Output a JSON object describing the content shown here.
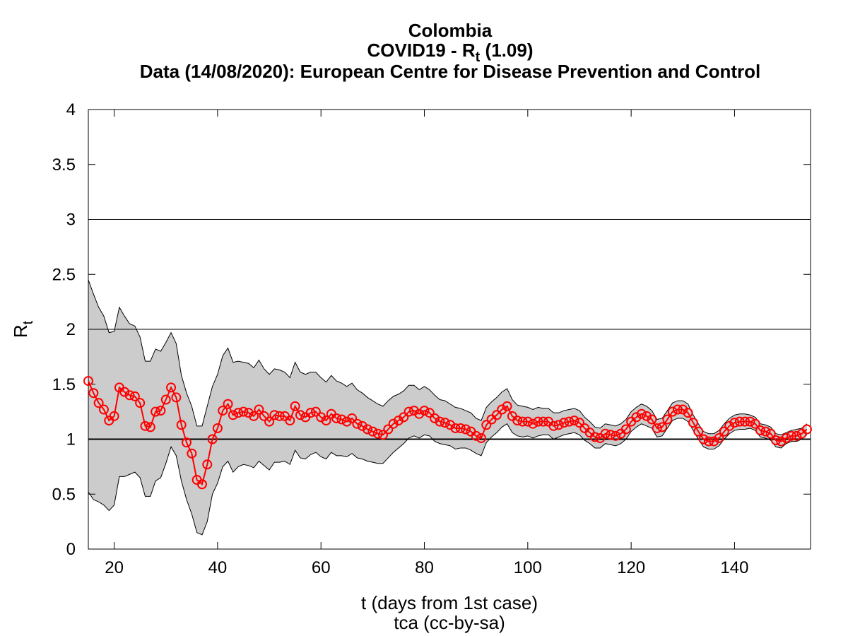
{
  "chart_data": {
    "type": "line",
    "title": "Colombia",
    "subtitle": {
      "main": "COVID19 - R",
      "sub": "t",
      "after": " (1.09)"
    },
    "source": "Data (14/08/2020): European Centre for Disease Prevention and Control",
    "xlabel": "t (days from 1st case)",
    "ylabel": {
      "main": "R",
      "sub": "t"
    },
    "footer": "tca (cc-by-sa)",
    "xlim": [
      15,
      154.7
    ],
    "ylim": [
      0,
      4
    ],
    "xticks": [
      20,
      40,
      60,
      80,
      100,
      120,
      140
    ],
    "yticks": [
      0,
      0.5,
      1,
      1.5,
      2,
      2.5,
      3,
      3.5,
      4
    ],
    "hlines": [
      1,
      2,
      3
    ],
    "x": [
      15,
      16,
      17,
      18,
      19,
      20,
      21,
      22,
      23,
      24,
      25,
      26,
      27,
      28,
      29,
      30,
      31,
      32,
      33,
      34,
      35,
      36,
      37,
      38,
      39,
      40,
      41,
      42,
      43,
      44,
      45,
      46,
      47,
      48,
      49,
      50,
      51,
      52,
      53,
      54,
      55,
      56,
      57,
      58,
      59,
      60,
      61,
      62,
      63,
      64,
      65,
      66,
      67,
      68,
      69,
      70,
      71,
      72,
      73,
      74,
      75,
      76,
      77,
      78,
      79,
      80,
      81,
      82,
      83,
      84,
      85,
      86,
      87,
      88,
      89,
      90,
      91,
      92,
      93,
      94,
      95,
      96,
      97,
      98,
      99,
      100,
      101,
      102,
      103,
      104,
      105,
      106,
      107,
      108,
      109,
      110,
      111,
      112,
      113,
      114,
      115,
      116,
      117,
      118,
      119,
      120,
      121,
      122,
      123,
      124,
      125,
      126,
      127,
      128,
      129,
      130,
      131,
      132,
      133,
      134,
      135,
      136,
      137,
      138,
      139,
      140,
      141,
      142,
      143,
      144,
      145,
      146,
      147,
      148,
      149,
      150,
      151,
      152,
      153,
      154
    ],
    "series": [
      {
        "color": "#ff0000",
        "values": [
          1.53,
          1.42,
          1.33,
          1.27,
          1.17,
          1.21,
          1.47,
          1.43,
          1.4,
          1.39,
          1.33,
          1.12,
          1.11,
          1.25,
          1.26,
          1.36,
          1.47,
          1.38,
          1.13,
          0.97,
          0.87,
          0.63,
          0.59,
          0.77,
          1.0,
          1.1,
          1.26,
          1.32,
          1.22,
          1.24,
          1.25,
          1.24,
          1.21,
          1.27,
          1.21,
          1.16,
          1.22,
          1.21,
          1.21,
          1.17,
          1.3,
          1.22,
          1.2,
          1.24,
          1.25,
          1.2,
          1.17,
          1.23,
          1.19,
          1.18,
          1.16,
          1.19,
          1.14,
          1.12,
          1.09,
          1.07,
          1.05,
          1.04,
          1.09,
          1.14,
          1.17,
          1.2,
          1.25,
          1.26,
          1.23,
          1.26,
          1.24,
          1.19,
          1.16,
          1.15,
          1.13,
          1.1,
          1.1,
          1.09,
          1.07,
          1.03,
          1.01,
          1.13,
          1.18,
          1.22,
          1.27,
          1.3,
          1.21,
          1.17,
          1.16,
          1.16,
          1.14,
          1.16,
          1.16,
          1.16,
          1.12,
          1.13,
          1.15,
          1.16,
          1.17,
          1.15,
          1.1,
          1.06,
          1.02,
          1.01,
          1.05,
          1.04,
          1.03,
          1.05,
          1.09,
          1.16,
          1.2,
          1.23,
          1.21,
          1.18,
          1.1,
          1.11,
          1.18,
          1.25,
          1.27,
          1.27,
          1.24,
          1.15,
          1.07,
          1.0,
          0.98,
          0.98,
          1.01,
          1.07,
          1.12,
          1.15,
          1.16,
          1.16,
          1.16,
          1.14,
          1.08,
          1.07,
          1.05,
          0.99,
          0.98,
          1.01,
          1.03,
          1.03,
          1.05,
          1.09
        ]
      }
    ],
    "band": {
      "color": "#cccccc",
      "upper": [
        2.45,
        2.32,
        2.2,
        2.12,
        1.97,
        1.98,
        2.2,
        2.12,
        2.05,
        2.03,
        1.93,
        1.71,
        1.71,
        1.82,
        1.8,
        1.88,
        1.97,
        1.87,
        1.58,
        1.42,
        1.3,
        1.12,
        1.12,
        1.3,
        1.48,
        1.59,
        1.76,
        1.83,
        1.7,
        1.71,
        1.7,
        1.69,
        1.65,
        1.72,
        1.64,
        1.59,
        1.64,
        1.63,
        1.61,
        1.56,
        1.7,
        1.61,
        1.59,
        1.61,
        1.61,
        1.56,
        1.52,
        1.58,
        1.53,
        1.51,
        1.48,
        1.51,
        1.45,
        1.42,
        1.38,
        1.35,
        1.32,
        1.3,
        1.35,
        1.39,
        1.41,
        1.44,
        1.49,
        1.49,
        1.45,
        1.48,
        1.45,
        1.4,
        1.36,
        1.35,
        1.32,
        1.29,
        1.28,
        1.26,
        1.24,
        1.19,
        1.17,
        1.29,
        1.34,
        1.38,
        1.43,
        1.46,
        1.36,
        1.31,
        1.3,
        1.29,
        1.27,
        1.29,
        1.28,
        1.28,
        1.24,
        1.24,
        1.26,
        1.27,
        1.28,
        1.26,
        1.2,
        1.16,
        1.11,
        1.1,
        1.14,
        1.13,
        1.12,
        1.14,
        1.18,
        1.25,
        1.29,
        1.32,
        1.3,
        1.26,
        1.18,
        1.19,
        1.26,
        1.33,
        1.35,
        1.35,
        1.32,
        1.22,
        1.14,
        1.07,
        1.05,
        1.05,
        1.08,
        1.14,
        1.19,
        1.22,
        1.23,
        1.23,
        1.22,
        1.2,
        1.14,
        1.13,
        1.11,
        1.05,
        1.04,
        1.06,
        1.08,
        1.09,
        1.1,
        1.14
      ],
      "lower": [
        0.52,
        0.45,
        0.43,
        0.4,
        0.35,
        0.4,
        0.66,
        0.66,
        0.68,
        0.7,
        0.65,
        0.48,
        0.48,
        0.62,
        0.65,
        0.78,
        0.93,
        0.85,
        0.62,
        0.45,
        0.32,
        0.15,
        0.13,
        0.25,
        0.5,
        0.6,
        0.75,
        0.8,
        0.7,
        0.75,
        0.77,
        0.76,
        0.74,
        0.8,
        0.76,
        0.72,
        0.79,
        0.79,
        0.8,
        0.77,
        0.9,
        0.83,
        0.82,
        0.86,
        0.88,
        0.84,
        0.82,
        0.88,
        0.85,
        0.85,
        0.84,
        0.87,
        0.83,
        0.82,
        0.8,
        0.79,
        0.78,
        0.78,
        0.83,
        0.88,
        0.92,
        0.96,
        1.01,
        1.03,
        1.01,
        1.04,
        1.03,
        0.98,
        0.96,
        0.95,
        0.94,
        0.91,
        0.92,
        0.92,
        0.9,
        0.87,
        0.85,
        0.97,
        1.02,
        1.06,
        1.11,
        1.14,
        1.06,
        1.03,
        1.02,
        1.03,
        1.01,
        1.03,
        1.04,
        1.04,
        1.0,
        1.02,
        1.04,
        1.05,
        1.06,
        1.04,
        0.99,
        0.96,
        0.92,
        0.92,
        0.96,
        0.95,
        0.94,
        0.96,
        1.0,
        1.07,
        1.11,
        1.14,
        1.12,
        1.1,
        1.02,
        1.03,
        1.1,
        1.17,
        1.19,
        1.19,
        1.16,
        1.08,
        1.0,
        0.93,
        0.91,
        0.91,
        0.94,
        1.0,
        1.05,
        1.08,
        1.09,
        1.09,
        1.1,
        1.08,
        1.02,
        1.01,
        0.99,
        0.93,
        0.92,
        0.96,
        0.98,
        0.98,
        1.0,
        1.04
      ]
    }
  }
}
